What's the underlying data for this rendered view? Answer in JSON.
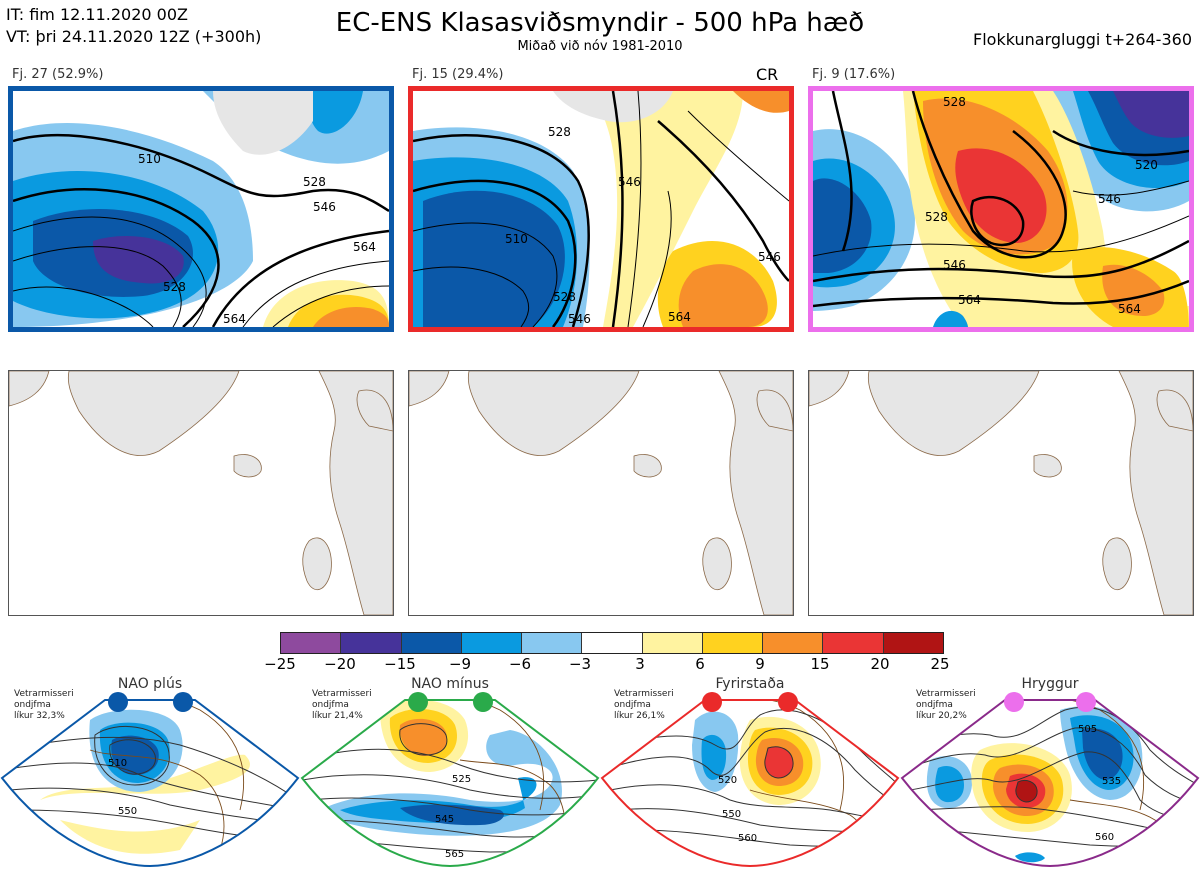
{
  "header": {
    "init_time": "IT: fim 12.11.2020 00Z",
    "valid_time": "VT: þri 24.11.2020 12Z  (+300h)",
    "title": "EC-ENS Klasasviðsmyndir - 500 hPa hæð",
    "subtitle": "Miðað við nóv 1981-2010",
    "window": "Flokkunargluggi t+264-360"
  },
  "clusters": [
    {
      "label": "Fj. 27 (52.9%)",
      "border_color": "#0a58a8",
      "contour_labels": [
        "510",
        "528",
        "528",
        "546",
        "564",
        "564"
      ]
    },
    {
      "label": "Fj. 15 (29.4%)",
      "border_color": "#ea2a2a",
      "tag": "CR",
      "contour_labels": [
        "510",
        "528",
        "546",
        "564",
        "546",
        "528",
        "546"
      ]
    },
    {
      "label": "Fj. 9 (17.6%)",
      "border_color": "#ec6fec",
      "contour_labels": [
        "528",
        "528",
        "546",
        "564",
        "564",
        "520",
        "546"
      ]
    }
  ],
  "colorbar": {
    "colors": [
      "#8e4a9e",
      "#46339a",
      "#0b58a8",
      "#0a9ae0",
      "#88c8f0",
      "#ffffff",
      "#fff3a0",
      "#ffd21f",
      "#f78f2b",
      "#ea3535",
      "#b01414"
    ],
    "ticks": [
      "−25",
      "−20",
      "−15",
      "−9",
      "−6",
      "−3",
      "3",
      "6",
      "9",
      "15",
      "20",
      "25"
    ]
  },
  "regimes": [
    {
      "name": "NAO plús",
      "note_lines": [
        "Vetrarmisseri",
        "ondjfma",
        "líkur 32,3%"
      ],
      "color": "#0a58a8",
      "contour_labels": [
        "510",
        "550"
      ]
    },
    {
      "name": "NAO mínus",
      "note_lines": [
        "Vetrarmisseri",
        "ondjfma",
        "líkur 21,4%"
      ],
      "color": "#2aaa4a",
      "contour_labels": [
        "525",
        "545",
        "565"
      ]
    },
    {
      "name": "Fyrirstaða",
      "note_lines": [
        "Vetrarmisseri",
        "ondjfma",
        "líkur 26,1%"
      ],
      "color": "#ea2a2a",
      "contour_labels": [
        "520",
        "550",
        "560"
      ]
    },
    {
      "name": "Hryggur",
      "note_lines": [
        "Vetrarmisseri",
        "ondjfma",
        "líkur 20,2%"
      ],
      "color": "#ec6fec",
      "contour_labels": [
        "505",
        "535",
        "560"
      ]
    }
  ]
}
